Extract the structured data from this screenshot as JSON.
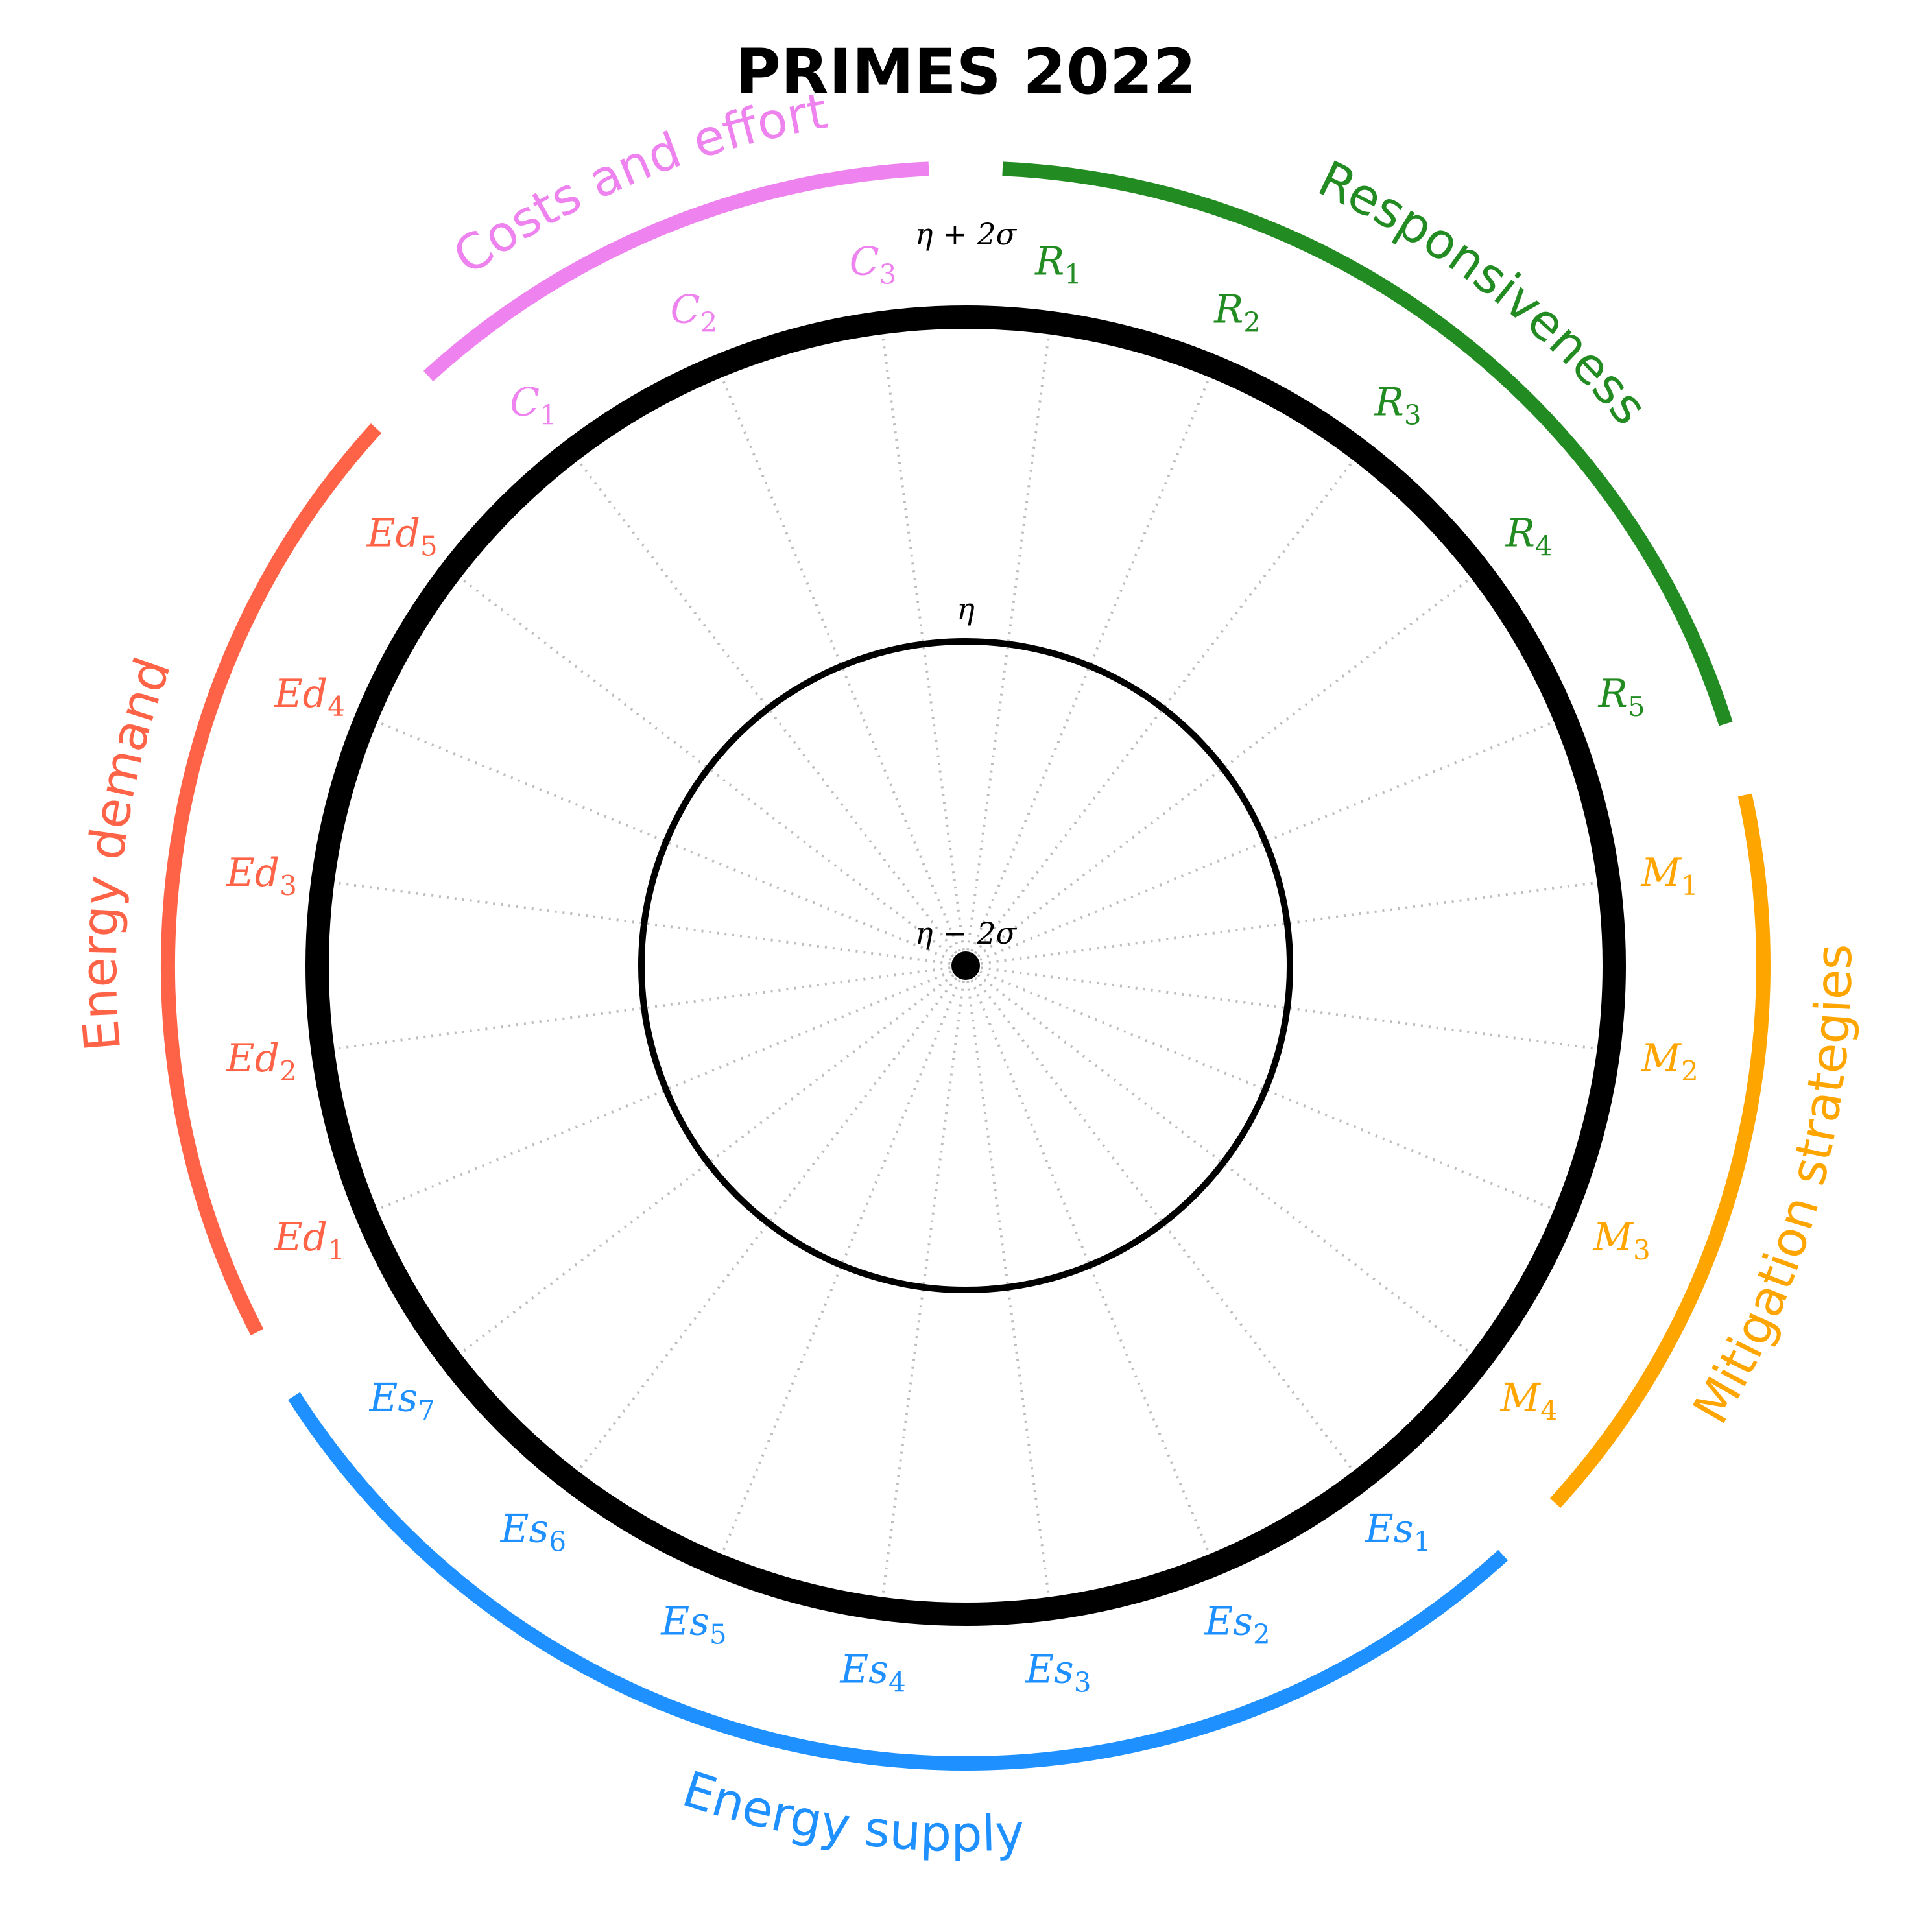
{
  "chart_data": {
    "type": "radar",
    "title": "PRIMES 2022",
    "ring_labels": {
      "inner": "η − 2σ",
      "middle": "η",
      "outer": "η + 2σ"
    },
    "groups": [
      {
        "name": "Responsiveness",
        "color": "#228b22",
        "axes": [
          {
            "base": "R",
            "sub": "1"
          },
          {
            "base": "R",
            "sub": "2"
          },
          {
            "base": "R",
            "sub": "3"
          },
          {
            "base": "R",
            "sub": "4"
          },
          {
            "base": "R",
            "sub": "5"
          }
        ]
      },
      {
        "name": "Mitigation strategies",
        "color": "#ffa500",
        "axes": [
          {
            "base": "M",
            "sub": "1"
          },
          {
            "base": "M",
            "sub": "2"
          },
          {
            "base": "M",
            "sub": "3"
          },
          {
            "base": "M",
            "sub": "4"
          }
        ]
      },
      {
        "name": "Energy supply",
        "color": "#1e90ff",
        "axes": [
          {
            "base": "Es",
            "sub": "1"
          },
          {
            "base": "Es",
            "sub": "2"
          },
          {
            "base": "Es",
            "sub": "3"
          },
          {
            "base": "Es",
            "sub": "4"
          },
          {
            "base": "Es",
            "sub": "5"
          },
          {
            "base": "Es",
            "sub": "6"
          },
          {
            "base": "Es",
            "sub": "7"
          }
        ]
      },
      {
        "name": "Energy demand",
        "color": "#ff6347",
        "axes": [
          {
            "base": "Ed",
            "sub": "1"
          },
          {
            "base": "Ed",
            "sub": "2"
          },
          {
            "base": "Ed",
            "sub": "3"
          },
          {
            "base": "Ed",
            "sub": "4"
          },
          {
            "base": "Ed",
            "sub": "5"
          }
        ]
      },
      {
        "name": "Costs and effort",
        "color": "#ee82ee",
        "axes": [
          {
            "base": "C",
            "sub": "1"
          },
          {
            "base": "C",
            "sub": "2"
          },
          {
            "base": "C",
            "sub": "3"
          }
        ]
      }
    ],
    "scale": {
      "min": "η − 2σ",
      "mid": "η",
      "max": "η + 2σ"
    },
    "series": [
      {
        "values_in_sigma": [
          2,
          2,
          2,
          2,
          2,
          2,
          2,
          2,
          2,
          2,
          2,
          2,
          2,
          2,
          2,
          2,
          2,
          2,
          2,
          2,
          2,
          2,
          2,
          2
        ]
      }
    ]
  }
}
